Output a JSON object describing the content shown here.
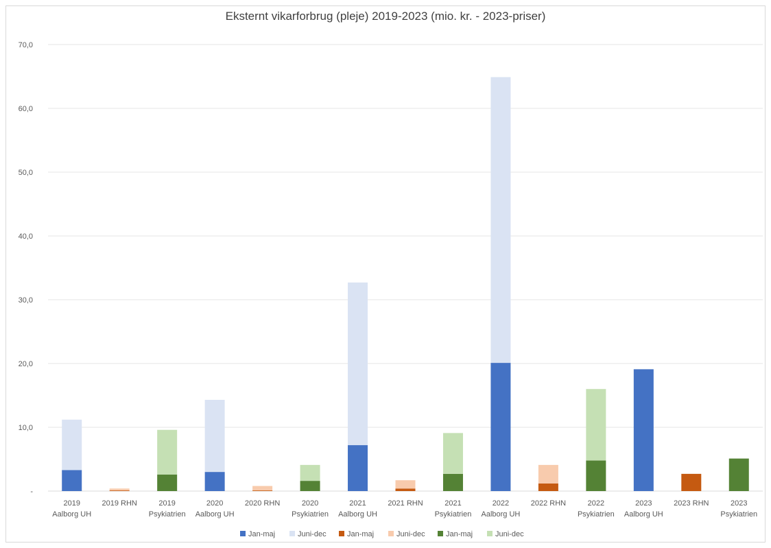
{
  "chart_data": {
    "type": "bar",
    "stacked": true,
    "title": "Eksternt vikarforbrug (pleje) 2019-2023 (mio. kr. - 2023-priser)",
    "xlabel": "",
    "ylabel": "",
    "ylim": [
      0,
      70
    ],
    "yticks": [
      "-",
      "10,0",
      "20,0",
      "30,0",
      "40,0",
      "50,0",
      "60,0",
      "70,0"
    ],
    "grid": true,
    "legend_position": "bottom",
    "categories": [
      [
        "2019",
        "Aalborg UH"
      ],
      [
        "2019 RHN"
      ],
      [
        "2019",
        "Psykiatrien"
      ],
      [
        "2020",
        "Aalborg UH"
      ],
      [
        "2020 RHN"
      ],
      [
        "2020",
        "Psykiatrien"
      ],
      [
        "2021",
        "Aalborg UH"
      ],
      [
        "2021 RHN"
      ],
      [
        "2021",
        "Psykiatrien"
      ],
      [
        "2022",
        "Aalborg UH"
      ],
      [
        "2022 RHN"
      ],
      [
        "2022",
        "Psykiatrien"
      ],
      [
        "2023",
        "Aalborg UH"
      ],
      [
        "2023 RHN"
      ],
      [
        "2023",
        "Psykiatrien"
      ]
    ],
    "series": [
      {
        "name": "Jan-maj",
        "color": "#4472c4",
        "values": [
          3.3,
          0,
          0,
          3.0,
          0,
          0,
          7.2,
          0,
          0,
          20.1,
          0,
          0,
          19.1,
          0,
          0
        ]
      },
      {
        "name": "Juni-dec",
        "color": "#dae3f3",
        "values": [
          7.9,
          0,
          0,
          11.3,
          0,
          0,
          25.5,
          0,
          0,
          44.8,
          0,
          0,
          0,
          0,
          0
        ]
      },
      {
        "name": "Jan-maj",
        "color": "#c55a11",
        "values": [
          0,
          0.1,
          0,
          0,
          0.1,
          0,
          0,
          0.4,
          0,
          0,
          1.2,
          0,
          0,
          2.7,
          0
        ]
      },
      {
        "name": "Juni-dec",
        "color": "#f8cbad",
        "values": [
          0,
          0.3,
          0,
          0,
          0.7,
          0,
          0,
          1.3,
          0,
          0,
          2.9,
          0,
          0,
          0,
          0
        ]
      },
      {
        "name": "Jan-maj",
        "color": "#548235",
        "values": [
          0,
          0,
          2.6,
          0,
          0,
          1.6,
          0,
          0,
          2.7,
          0,
          0,
          4.8,
          0,
          0,
          5.1
        ]
      },
      {
        "name": "Juni-dec",
        "color": "#c5e0b4",
        "values": [
          0,
          0,
          7.0,
          0,
          0,
          2.5,
          0,
          0,
          6.4,
          0,
          0,
          11.2,
          0,
          0,
          0
        ]
      }
    ]
  }
}
